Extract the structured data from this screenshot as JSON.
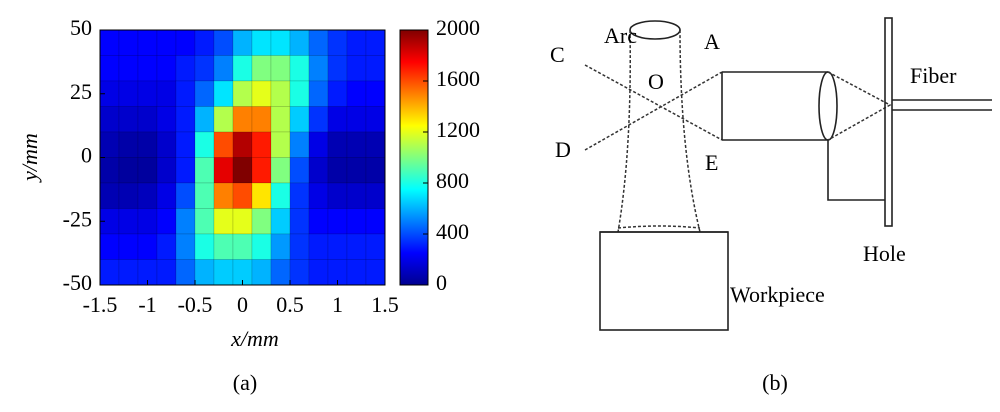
{
  "chart_data": {
    "type": "heatmap",
    "xlabel": "x/mm",
    "ylabel": "y/mm",
    "caption": "(a)",
    "x": [
      -1.4,
      -1.2,
      -1.0,
      -0.8,
      -0.6,
      -0.4,
      -0.2,
      0,
      0.2,
      0.4,
      0.6,
      0.8,
      1.0,
      1.2,
      1.4
    ],
    "y": [
      45,
      35,
      25,
      15,
      5,
      -5,
      -15,
      -25,
      -35,
      -45
    ],
    "values": [
      [
        250,
        250,
        250,
        250,
        250,
        300,
        400,
        600,
        700,
        700,
        600,
        450,
        350,
        300,
        300
      ],
      [
        250,
        250,
        250,
        250,
        300,
        350,
        500,
        800,
        1000,
        1000,
        800,
        500,
        350,
        300,
        300
      ],
      [
        200,
        200,
        200,
        200,
        300,
        450,
        700,
        1100,
        1200,
        1100,
        800,
        450,
        300,
        250,
        250
      ],
      [
        150,
        150,
        150,
        200,
        300,
        600,
        1100,
        1500,
        1500,
        1100,
        650,
        350,
        200,
        200,
        200
      ],
      [
        100,
        80,
        80,
        150,
        300,
        800,
        1600,
        1900,
        1700,
        1100,
        500,
        200,
        100,
        100,
        100
      ],
      [
        80,
        60,
        60,
        150,
        300,
        900,
        1800,
        2000,
        1700,
        1000,
        400,
        150,
        80,
        80,
        80
      ],
      [
        100,
        100,
        120,
        200,
        400,
        900,
        1500,
        1600,
        1300,
        800,
        350,
        200,
        150,
        150,
        150
      ],
      [
        200,
        200,
        200,
        250,
        500,
        900,
        1200,
        1200,
        1000,
        650,
        350,
        250,
        250,
        250,
        250
      ],
      [
        250,
        250,
        250,
        300,
        500,
        800,
        900,
        900,
        800,
        550,
        350,
        300,
        300,
        300,
        300
      ],
      [
        300,
        300,
        300,
        300,
        450,
        600,
        650,
        650,
        600,
        450,
        350,
        300,
        300,
        300,
        300
      ]
    ],
    "xlim": [
      -1.5,
      1.5
    ],
    "xticks": [
      -1.5,
      -1,
      -0.5,
      0,
      0.5,
      1,
      1.5
    ],
    "ylim": [
      -50,
      50
    ],
    "yticks": [
      50,
      25,
      0,
      -25,
      -50
    ],
    "clim": [
      0,
      2000
    ],
    "cticks": [
      2000,
      1600,
      1200,
      800,
      400,
      0
    ],
    "colormap": "jet"
  },
  "diagram": {
    "labels": {
      "arc": "Arc",
      "c": "C",
      "a": "A",
      "o": "O",
      "d": "D",
      "e": "E",
      "fiber": "Fiber",
      "hole": "Hole",
      "workpiece": "Workpiece"
    },
    "caption": "(b)"
  }
}
